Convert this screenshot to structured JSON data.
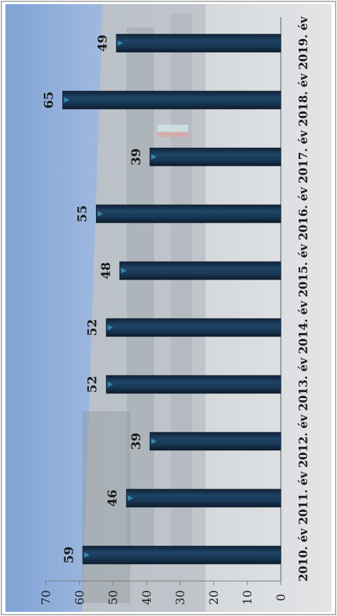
{
  "chart_data": {
    "type": "bar",
    "orientation": "rotated-90-ccw",
    "title": "",
    "xlabel": "",
    "ylabel": "",
    "categories": [
      "2010. év",
      "2011. év",
      "2012. év",
      "2013. év",
      "2014. év",
      "2015. év",
      "2016. év",
      "2017. év",
      "2018. év",
      "2019. év"
    ],
    "values": [
      59,
      46,
      39,
      52,
      52,
      48,
      55,
      39,
      65,
      49
    ],
    "value_labels": [
      "59",
      "46",
      "39",
      "52",
      "52",
      "48",
      "55",
      "39",
      "65",
      "49"
    ],
    "yticks": [
      "0",
      "10",
      "20",
      "30",
      "40",
      "50",
      "60",
      "70"
    ],
    "ylim": [
      0,
      70
    ],
    "grid": false,
    "legend": "none",
    "bar_color": "#1b3550",
    "bar_highlight": "#3a8fb5",
    "background": "photo of a building behind the plot"
  }
}
